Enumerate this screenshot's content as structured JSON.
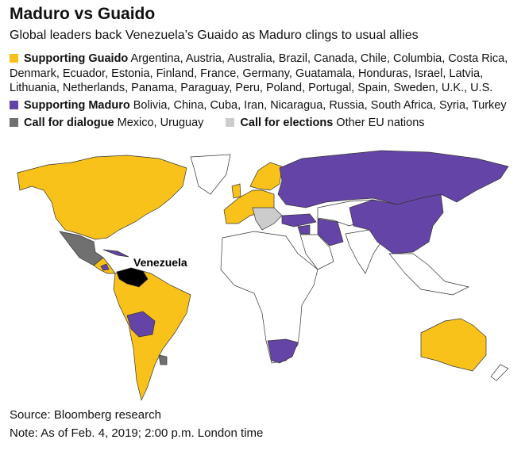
{
  "header": {
    "title": "Maduro vs Guaido",
    "subtitle": "Global leaders back Venezuela’s Guaido as Maduro clings to usual allies"
  },
  "legend": [
    {
      "label": "Supporting Guaido",
      "countries": "Argentina, Austria, Australia, Brazil, Canada, Chile, Columbia, Costa Rica, Denmark, Ecuador, Estonia, Finland, France, Germany, Guatamala, Honduras, Israel, Latvia, Lithuania, Netherlands, Panama, Paraguay, Peru, Poland, Portugal, Spain, Sweden, U.K., U.S.",
      "color": "#f9c21b"
    },
    {
      "label": "Supporting Maduro",
      "countries": "Bolivia, China, Cuba, Iran, Nicaragua, Russia, South Africa, Syria, Turkey",
      "color": "#6544a8"
    },
    {
      "label": "Call for dialogue",
      "countries": "Mexico, Uruguay",
      "color": "#707070"
    },
    {
      "label": "Call for elections",
      "countries": "Other EU nations",
      "color": "#cccccc"
    }
  ],
  "map": {
    "label": "Venezuela"
  },
  "footer": {
    "source": "Source: Bloomberg research",
    "note": "Note: As of Feb. 4, 2019; 2:00 p.m. London time"
  }
}
